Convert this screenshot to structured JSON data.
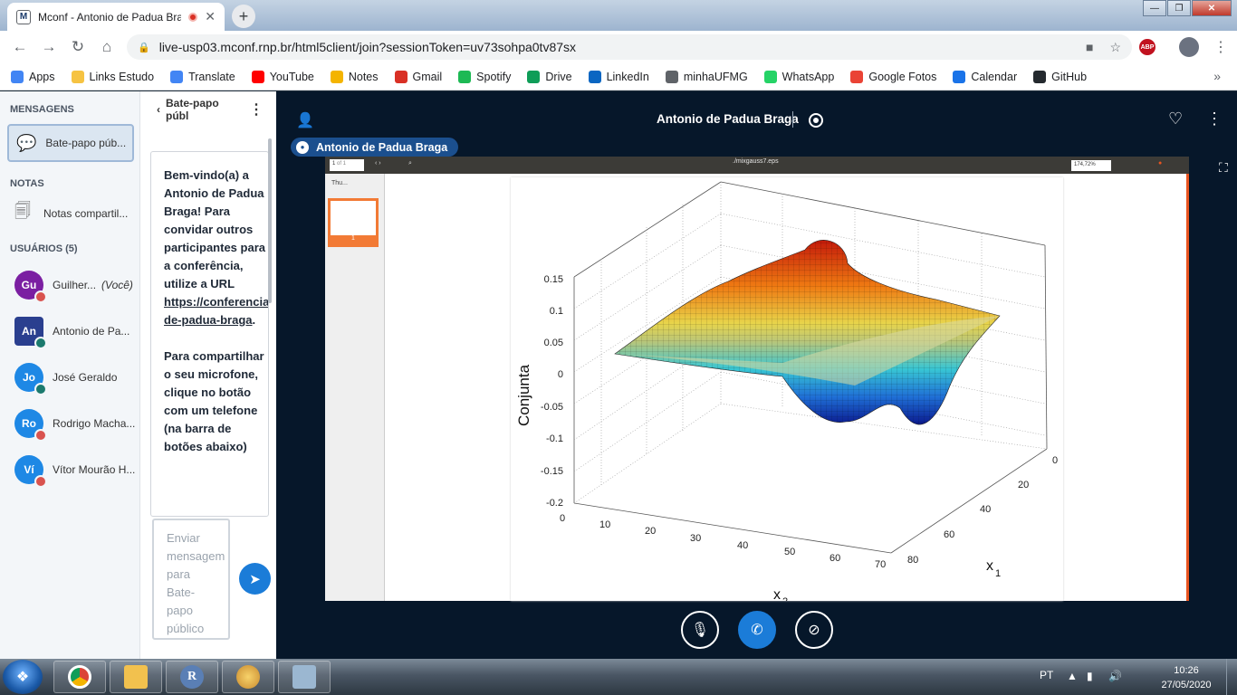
{
  "browser": {
    "tab_title": "Mconf - Antonio de Padua Braga",
    "tab_favicon_letter": "M",
    "url": "live-usp03.mconf.rnp.br/html5client/join?sessionToken=uv73sohpa0tv87sx",
    "abp_label": "ABP",
    "bookmarks": [
      {
        "label": "Apps",
        "color": "#4285f4"
      },
      {
        "label": "Links Estudo",
        "color": "#f6c342"
      },
      {
        "label": "Translate",
        "color": "#4285f4"
      },
      {
        "label": "YouTube",
        "color": "#ff0000"
      },
      {
        "label": "Notes",
        "color": "#f4b400"
      },
      {
        "label": "Gmail",
        "color": "#d93025"
      },
      {
        "label": "Spotify",
        "color": "#1db954"
      },
      {
        "label": "Drive",
        "color": "#0f9d58"
      },
      {
        "label": "LinkedIn",
        "color": "#0a66c2"
      },
      {
        "label": "minhaUFMG",
        "color": "#5f6368"
      },
      {
        "label": "WhatsApp",
        "color": "#25d366"
      },
      {
        "label": "Google Fotos",
        "color": "#ea4335"
      },
      {
        "label": "Calendar",
        "color": "#1a73e8"
      },
      {
        "label": "GitHub",
        "color": "#24292e"
      }
    ]
  },
  "sidebar": {
    "messages_header": "MENSAGENS",
    "public_chat": "Bate-papo púb...",
    "notes_header": "NOTAS",
    "shared_notes": "Notas compartil...",
    "users_header": "USUÁRIOS (5)",
    "users": [
      {
        "initials": "Gu",
        "name": "Guilher...",
        "you": "(Você)",
        "color": "#7b1fa2",
        "status_color": "#d9534f"
      },
      {
        "initials": "An",
        "name": "Antonio de Pa...",
        "you": "",
        "color": "#2a3f8f",
        "status_color": "#1b7a6e"
      },
      {
        "initials": "Jo",
        "name": "José Geraldo",
        "you": "",
        "color": "#1e88e5",
        "status_color": "#1b7a6e"
      },
      {
        "initials": "Ro",
        "name": "Rodrigo Macha...",
        "you": "",
        "color": "#1e88e5",
        "status_color": "#d9534f"
      },
      {
        "initials": "Ví",
        "name": "Vítor Mourão H...",
        "you": "",
        "color": "#1e88e5",
        "status_color": "#d9534f"
      }
    ]
  },
  "chat": {
    "title": "Bate-papo públ",
    "welcome_1": "Bem-vindo(a) a Antonio de Padua Braga! Para convidar outros participantes para a conferência, utilize a URL",
    "welcome_link": "https://conferencia de-padua-braga",
    "welcome_link_end": ".",
    "welcome_2": "Para compartilhar o seu microfone, clique no botão com um telefone (na barra de botões abaixo)",
    "input_placeholder": "Enviar mensagem para Bate-papo público"
  },
  "meeting": {
    "title": "Antonio de Padua Braga",
    "talking": "Antonio de Padua Braga"
  },
  "presentation": {
    "page_field": "1",
    "page_of": "of 1",
    "filename": "./mixgauss7.eps",
    "zoom": "174,72%",
    "thumbnails_label": "Thu...",
    "thumb_page": "1"
  },
  "plot": {
    "zlabel": "Conjunta",
    "xlabel": "x",
    "xlabel_sub": "2",
    "ylabel": "x",
    "ylabel_sub": "1",
    "z_ticks": [
      "0.15",
      "0.1",
      "0.05",
      "0",
      "-0.05",
      "-0.1",
      "-0.15",
      "-0.2"
    ],
    "x2_ticks": [
      "0",
      "10",
      "20",
      "30",
      "40",
      "50",
      "60",
      "70"
    ],
    "x1_ticks": [
      "0",
      "20",
      "40",
      "60",
      "80"
    ]
  },
  "taskbar": {
    "lang": "PT",
    "time": "10:26",
    "date": "27/05/2020",
    "r_label": "R"
  }
}
